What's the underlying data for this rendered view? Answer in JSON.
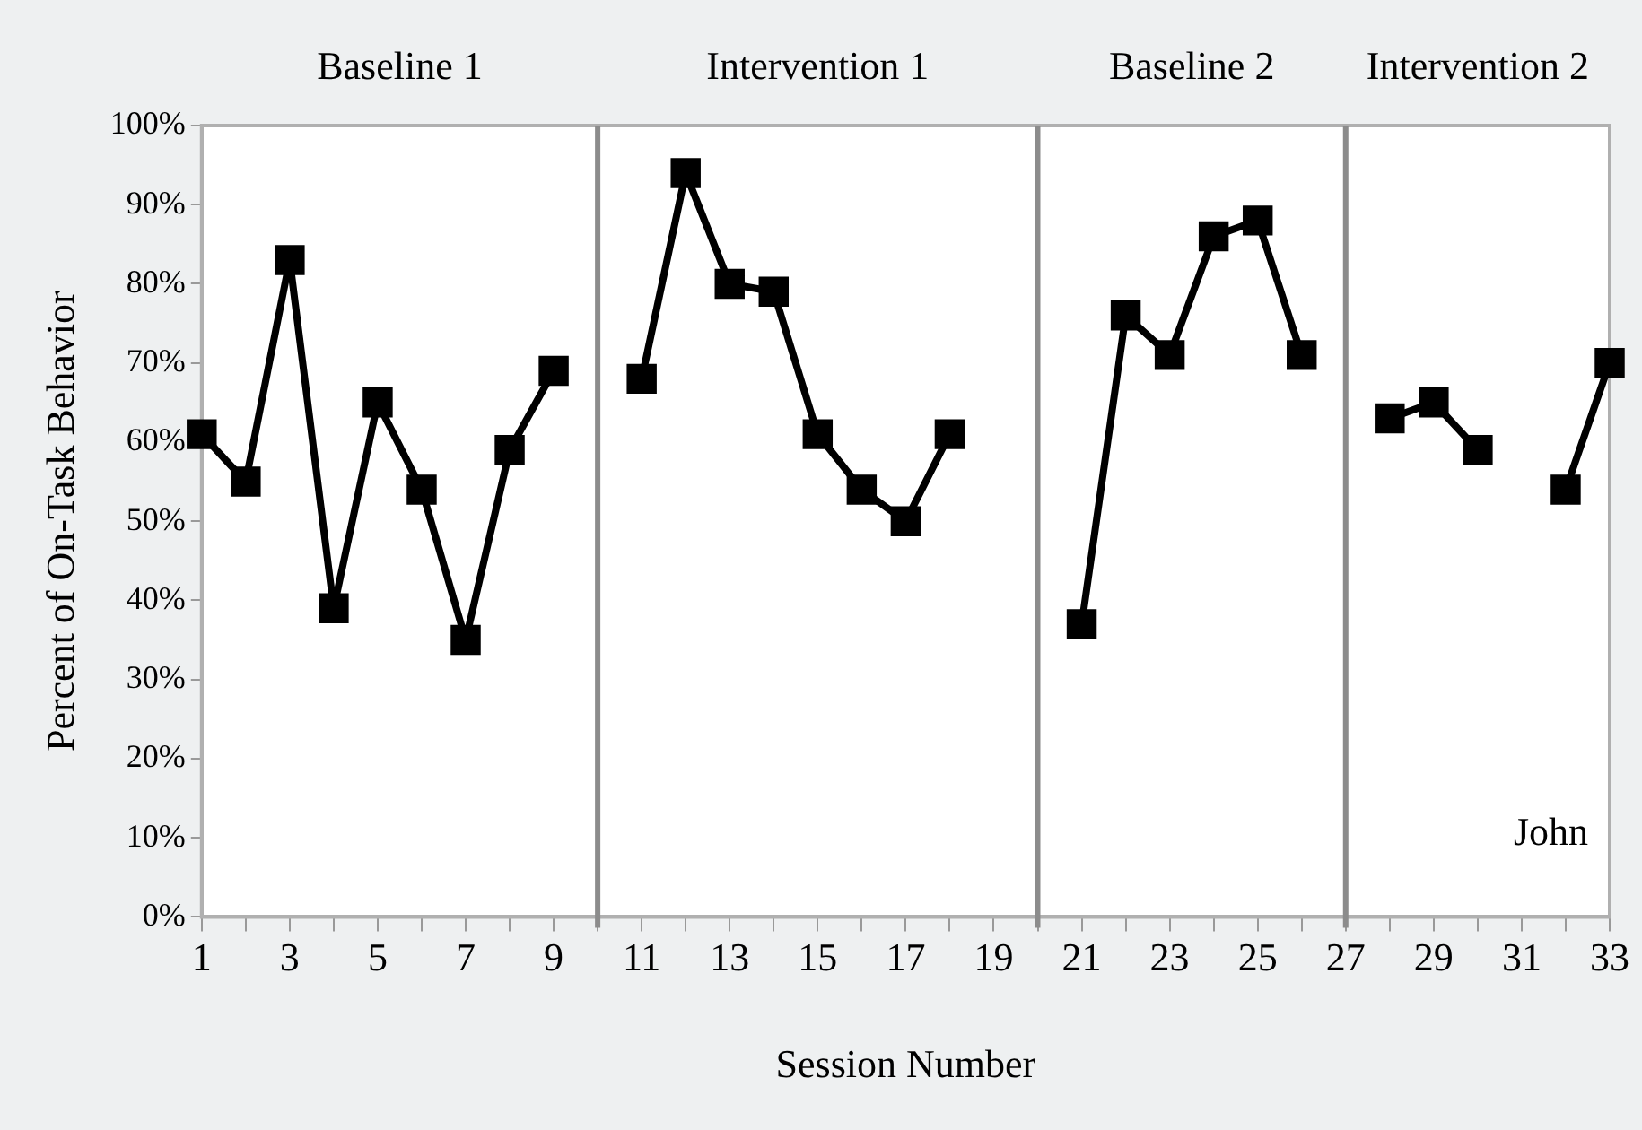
{
  "chart_data": {
    "type": "line",
    "xlabel": "Session Number",
    "ylabel": "Percent of On-Task Behavior",
    "xlim": [
      1,
      33
    ],
    "xticks": [
      1,
      {
        "value": 2,
        "label": null
      },
      3,
      {
        "value": 4,
        "label": null
      },
      5,
      {
        "value": 6,
        "label": null
      },
      7,
      {
        "value": 8,
        "label": null
      },
      9,
      {
        "value": 10,
        "label": null
      },
      11,
      {
        "value": 12,
        "label": null
      },
      13,
      {
        "value": 14,
        "label": null
      },
      15,
      {
        "value": 16,
        "label": null
      },
      17,
      {
        "value": 18,
        "label": null
      },
      19,
      {
        "value": 20,
        "label": null
      },
      21,
      {
        "value": 22,
        "label": null
      },
      23,
      {
        "value": 24,
        "label": null
      },
      25,
      {
        "value": 26,
        "label": null
      },
      27,
      {
        "value": 28,
        "label": null
      },
      29,
      {
        "value": 30,
        "label": null
      },
      31,
      {
        "value": 32,
        "label": null
      },
      33
    ],
    "ylim": [
      0,
      100
    ],
    "yticks": [
      {
        "value": 0,
        "label": "0%"
      },
      {
        "value": 10,
        "label": "10%"
      },
      {
        "value": 20,
        "label": "20%"
      },
      {
        "value": 30,
        "label": "30%"
      },
      {
        "value": 40,
        "label": "40%"
      },
      {
        "value": 50,
        "label": "50%"
      },
      {
        "value": 60,
        "label": "60%"
      },
      {
        "value": 70,
        "label": "70%"
      },
      {
        "value": 80,
        "label": "80%"
      },
      {
        "value": 90,
        "label": "90%"
      },
      {
        "value": 100,
        "label": "100%"
      }
    ],
    "series": [
      {
        "color": "#000000",
        "x": [
          1,
          2,
          3,
          4,
          5,
          6,
          7,
          8,
          9
        ],
        "values": [
          61,
          55,
          83,
          39,
          65,
          54,
          35,
          59,
          69
        ]
      },
      {
        "color": "#000000",
        "x": [
          11,
          12,
          13,
          14,
          15,
          16,
          17,
          18
        ],
        "values": [
          68,
          94,
          80,
          79,
          61,
          54,
          50,
          61
        ]
      },
      {
        "color": "#000000",
        "x": [
          21,
          22,
          23,
          24,
          25,
          26
        ],
        "values": [
          37,
          76,
          71,
          86,
          88,
          71
        ]
      },
      {
        "color": "#000000",
        "x": [
          28,
          29,
          30,
          31,
          32,
          33
        ],
        "values": [
          63,
          65,
          59,
          null,
          54,
          70
        ]
      }
    ],
    "ref_lines": [
      {
        "axis": "x",
        "value": 10,
        "color": "#8c8c8c"
      },
      {
        "axis": "x",
        "value": 20,
        "color": "#8c8c8c"
      },
      {
        "axis": "x",
        "value": 27,
        "color": "#8c8c8c"
      }
    ],
    "annotations": [
      "Baseline 1",
      "Intervention 1",
      "Baseline 2",
      "Intervention 2",
      "John"
    ],
    "marker": "square",
    "line_style": "solid",
    "grid": false,
    "legend": false
  }
}
